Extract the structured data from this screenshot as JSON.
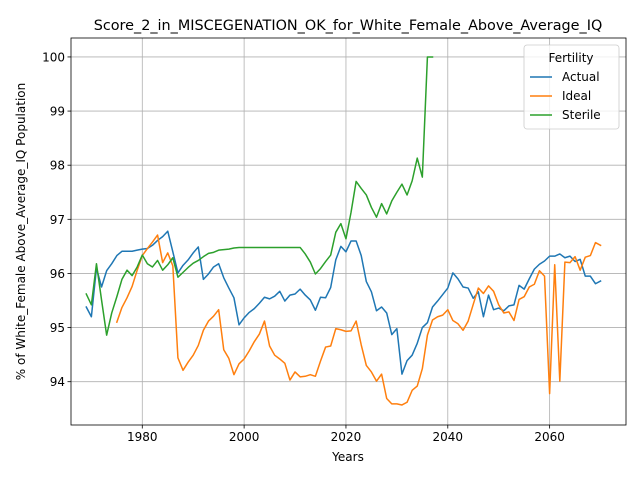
{
  "chart_data": {
    "type": "line",
    "title": "Score_2_in_MISCEGENATION_OK_for_White_Female_Above_Average_IQ",
    "xlabel": "Years",
    "ylabel": "% of White_Female Above_Average_IQ Population",
    "xlim": [
      1966,
      2075
    ],
    "ylim": [
      93.2,
      100.35
    ],
    "xticks": [
      1980,
      2000,
      2020,
      2040,
      2060
    ],
    "xtick_labels": [
      "1980",
      "2000",
      "2020",
      "2040",
      "2060"
    ],
    "yticks": [
      94,
      95,
      96,
      97,
      98,
      99,
      100
    ],
    "ytick_labels": [
      "94",
      "95",
      "96",
      "97",
      "98",
      "99",
      "100"
    ],
    "grid": true,
    "legend": {
      "title": "Fertility",
      "position": "top-right"
    },
    "series": [
      {
        "name": "Actual",
        "color": "#1f77b4",
        "x": [
          1969,
          1970,
          1971,
          1972,
          1973,
          1974,
          1975,
          1976,
          1977,
          1978,
          1979,
          1980,
          1981,
          1982,
          1983,
          1984,
          1985,
          1986,
          1987,
          1988,
          1989,
          1990,
          1991,
          1992,
          1993,
          1994,
          1995,
          1996,
          1997,
          1998,
          1999,
          2000,
          2001,
          2002,
          2003,
          2004,
          2005,
          2006,
          2007,
          2008,
          2009,
          2010,
          2011,
          2012,
          2013,
          2014,
          2015,
          2016,
          2017,
          2018,
          2019,
          2020,
          2021,
          2022,
          2023,
          2024,
          2025,
          2026,
          2027,
          2028,
          2029,
          2030,
          2031,
          2032,
          2033,
          2034,
          2035,
          2036,
          2037,
          2038,
          2039,
          2040,
          2041,
          2042,
          2043,
          2044,
          2045,
          2046,
          2047,
          2048,
          2049,
          2050,
          2051,
          2052,
          2053,
          2054,
          2055,
          2056,
          2057,
          2058,
          2059,
          2060,
          2061,
          2062,
          2063,
          2064,
          2065,
          2066,
          2067,
          2068,
          2069,
          2070
        ],
        "values": [
          95.38,
          95.2,
          96.1,
          95.75,
          96.05,
          96.18,
          96.33,
          96.41,
          96.41,
          96.41,
          96.43,
          96.45,
          96.46,
          96.52,
          96.61,
          96.68,
          96.78,
          96.4,
          96.01,
          96.15,
          96.25,
          96.38,
          96.49,
          95.89,
          95.99,
          96.12,
          96.18,
          95.92,
          95.73,
          95.55,
          95.05,
          95.18,
          95.28,
          95.35,
          95.45,
          95.56,
          95.53,
          95.58,
          95.67,
          95.49,
          95.6,
          95.62,
          95.71,
          95.6,
          95.51,
          95.32,
          95.56,
          95.55,
          95.74,
          96.25,
          96.5,
          96.4,
          96.6,
          96.6,
          96.33,
          95.85,
          95.66,
          95.31,
          95.38,
          95.27,
          94.87,
          94.98,
          94.14,
          94.39,
          94.49,
          94.71,
          95.0,
          95.09,
          95.38,
          95.49,
          95.61,
          95.73,
          96.01,
          95.9,
          95.75,
          95.73,
          95.54,
          95.66,
          95.2,
          95.6,
          95.33,
          95.36,
          95.31,
          95.4,
          95.42,
          95.78,
          95.71,
          95.9,
          96.08,
          96.17,
          96.23,
          96.32,
          96.32,
          96.36,
          96.29,
          96.32,
          96.22,
          96.26,
          95.95,
          95.95,
          95.81,
          95.86
        ]
      },
      {
        "name": "Ideal",
        "color": "#ff7f0e",
        "x": [
          1975,
          1976,
          1977,
          1978,
          1979,
          1980,
          1981,
          1982,
          1983,
          1984,
          1985,
          1986,
          1987,
          1988,
          1989,
          1990,
          1991,
          1992,
          1993,
          1994,
          1995,
          1996,
          1997,
          1998,
          1999,
          2000,
          2001,
          2002,
          2003,
          2004,
          2005,
          2006,
          2007,
          2008,
          2009,
          2010,
          2011,
          2012,
          2013,
          2014,
          2015,
          2016,
          2017,
          2018,
          2019,
          2020,
          2021,
          2022,
          2023,
          2024,
          2025,
          2026,
          2027,
          2028,
          2029,
          2030,
          2031,
          2032,
          2033,
          2034,
          2035,
          2036,
          2037,
          2038,
          2039,
          2040,
          2041,
          2042,
          2043,
          2044,
          2045,
          2046,
          2047,
          2048,
          2049,
          2050,
          2051,
          2052,
          2053,
          2054,
          2055,
          2056,
          2057,
          2058,
          2059,
          2060,
          2061,
          2062,
          2063,
          2064,
          2065,
          2066,
          2067,
          2068,
          2069,
          2070
        ],
        "values": [
          95.1,
          95.37,
          95.55,
          95.76,
          96.06,
          96.33,
          96.46,
          96.58,
          96.71,
          96.2,
          96.38,
          96.14,
          94.44,
          94.21,
          94.36,
          94.49,
          94.67,
          94.95,
          95.12,
          95.21,
          95.33,
          94.59,
          94.43,
          94.13,
          94.33,
          94.42,
          94.57,
          94.74,
          94.88,
          95.12,
          94.66,
          94.49,
          94.42,
          94.34,
          94.03,
          94.18,
          94.09,
          94.1,
          94.13,
          94.1,
          94.38,
          94.64,
          94.66,
          94.98,
          94.96,
          94.93,
          94.94,
          95.12,
          94.68,
          94.3,
          94.18,
          94.01,
          94.14,
          93.69,
          93.59,
          93.59,
          93.57,
          93.62,
          93.84,
          93.92,
          94.24,
          94.86,
          95.14,
          95.2,
          95.23,
          95.33,
          95.13,
          95.07,
          94.95,
          95.12,
          95.43,
          95.73,
          95.63,
          95.77,
          95.67,
          95.42,
          95.27,
          95.29,
          95.13,
          95.52,
          95.57,
          95.75,
          95.8,
          96.05,
          95.95,
          93.78,
          96.16,
          94.01,
          96.21,
          96.2,
          96.31,
          96.06,
          96.3,
          96.33,
          96.57,
          96.52
        ]
      },
      {
        "name": "Sterile",
        "color": "#2ca02c",
        "x": [
          1969,
          1970,
          1971,
          1972,
          1973,
          1974,
          1975,
          1976,
          1977,
          1978,
          1979,
          1980,
          1981,
          1982,
          1983,
          1984,
          1985,
          1986,
          1987,
          1988,
          1989,
          1990,
          1991,
          1992,
          1993,
          1994,
          1995,
          1996,
          1997,
          1998,
          1999,
          2000,
          2001,
          2002,
          2003,
          2004,
          2005,
          2006,
          2007,
          2008,
          2009,
          2010,
          2011,
          2012,
          2013,
          2014,
          2015,
          2016,
          2017,
          2018,
          2019,
          2020,
          2021,
          2022,
          2023,
          2024,
          2025,
          2026,
          2027,
          2028,
          2029,
          2030,
          2031,
          2032,
          2033,
          2034,
          2035,
          2036,
          2037
        ],
        "values": [
          95.62,
          95.42,
          96.18,
          95.51,
          94.86,
          95.27,
          95.57,
          95.89,
          96.06,
          95.96,
          96.12,
          96.34,
          96.18,
          96.12,
          96.24,
          96.06,
          96.16,
          96.29,
          95.93,
          96.02,
          96.11,
          96.19,
          96.24,
          96.31,
          96.37,
          96.39,
          96.43,
          96.44,
          96.45,
          96.47,
          96.48,
          96.48,
          96.48,
          96.48,
          96.48,
          96.48,
          96.48,
          96.48,
          96.48,
          96.48,
          96.48,
          96.48,
          96.48,
          96.36,
          96.21,
          95.99,
          96.09,
          96.22,
          96.34,
          96.76,
          96.92,
          96.64,
          97.13,
          97.7,
          97.57,
          97.45,
          97.22,
          97.04,
          97.29,
          97.1,
          97.34,
          97.5,
          97.65,
          97.45,
          97.71,
          98.13,
          97.78,
          100.0,
          100.0
        ]
      }
    ]
  }
}
